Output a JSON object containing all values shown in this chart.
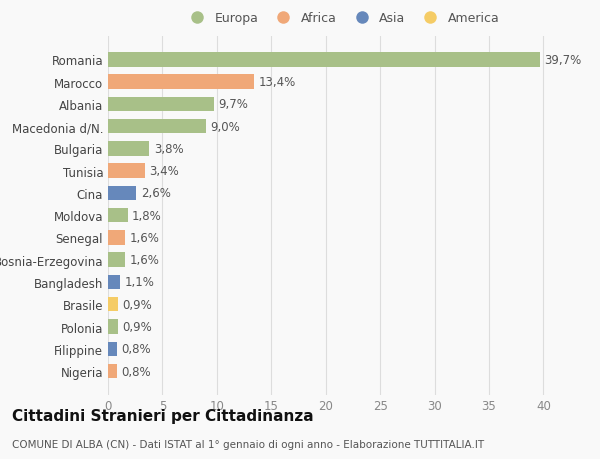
{
  "countries": [
    "Romania",
    "Marocco",
    "Albania",
    "Macedonia d/N.",
    "Bulgaria",
    "Tunisia",
    "Cina",
    "Moldova",
    "Senegal",
    "Bosnia-Erzegovina",
    "Bangladesh",
    "Brasile",
    "Polonia",
    "Filippine",
    "Nigeria"
  ],
  "values": [
    39.7,
    13.4,
    9.7,
    9.0,
    3.8,
    3.4,
    2.6,
    1.8,
    1.6,
    1.6,
    1.1,
    0.9,
    0.9,
    0.8,
    0.8
  ],
  "labels": [
    "39,7%",
    "13,4%",
    "9,7%",
    "9,0%",
    "3,8%",
    "3,4%",
    "2,6%",
    "1,8%",
    "1,6%",
    "1,6%",
    "1,1%",
    "0,9%",
    "0,9%",
    "0,8%",
    "0,8%"
  ],
  "continents": [
    "Europa",
    "Africa",
    "Europa",
    "Europa",
    "Europa",
    "Africa",
    "Asia",
    "Europa",
    "Africa",
    "Europa",
    "Asia",
    "America",
    "Europa",
    "Asia",
    "Africa"
  ],
  "continent_colors": {
    "Europa": "#a8c088",
    "Africa": "#f0a878",
    "Asia": "#6688bb",
    "America": "#f5cc66"
  },
  "legend_order": [
    "Europa",
    "Africa",
    "Asia",
    "America"
  ],
  "title": "Cittadini Stranieri per Cittadinanza",
  "subtitle": "COMUNE DI ALBA (CN) - Dati ISTAT al 1° gennaio di ogni anno - Elaborazione TUTTITALIA.IT",
  "xlim": [
    0,
    43
  ],
  "xticks": [
    0,
    5,
    10,
    15,
    20,
    25,
    30,
    35,
    40
  ],
  "background_color": "#f9f9f9",
  "grid_color": "#dddddd",
  "bar_height": 0.65,
  "label_fontsize": 8.5,
  "tick_fontsize": 8.5,
  "title_fontsize": 11,
  "subtitle_fontsize": 7.5
}
